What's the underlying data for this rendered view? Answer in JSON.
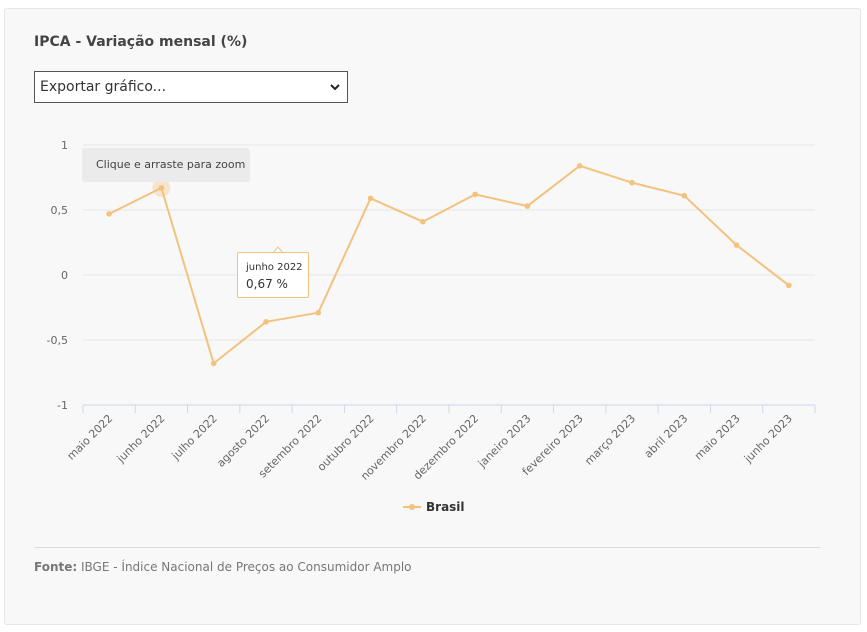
{
  "title": "IPCA - Variação mensal (%)",
  "export_select": {
    "value": "Exportar gráfico..."
  },
  "zoom_hint": "Clique e arraste para zoom",
  "tooltip": {
    "label": "junho 2022",
    "value": "0,67 %"
  },
  "source": {
    "label": "Fonte:",
    "text": "IBGE - Índice Nacional de Preços ao Consumidor Amplo"
  },
  "colors": {
    "series": "#f2c27e",
    "grid": "#e6e6e6",
    "axis": "#ccd6eb"
  },
  "chart_data": {
    "type": "line",
    "title": "IPCA - Variação mensal (%)",
    "categories": [
      "maio 2022",
      "junho 2022",
      "julho 2022",
      "agosto 2022",
      "setembro 2022",
      "outubro 2022",
      "novembro 2022",
      "dezembro 2022",
      "janeiro 2023",
      "fevereiro 2023",
      "março 2023",
      "abril 2023",
      "maio 2023",
      "junho 2023"
    ],
    "series": [
      {
        "name": "Brasil",
        "values": [
          0.47,
          0.67,
          -0.68,
          -0.36,
          -0.29,
          0.59,
          0.41,
          0.62,
          0.53,
          0.84,
          0.71,
          0.61,
          0.23,
          -0.08
        ]
      }
    ],
    "y_ticks": [
      "1",
      "0,5",
      "0",
      "-0,5",
      "-1"
    ],
    "ylim": [
      -1,
      1
    ],
    "grid": true,
    "legend": "bottom-center"
  }
}
